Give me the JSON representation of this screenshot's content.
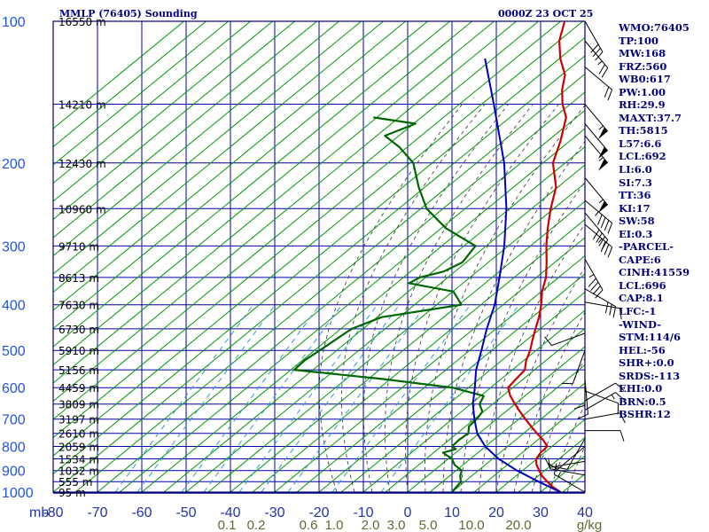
{
  "header": {
    "title": "MMLP (76405) Sounding",
    "datetime": "0000Z 23 OCT 25"
  },
  "indices": [
    "WMO:76405",
    "TP:100",
    "MW:168",
    "FRZ:560",
    "WB0:617",
    "PW:1.00",
    "RH:29.9",
    "MAXT:37.7",
    "TH:5815",
    "L57:6.6",
    "LCL:692",
    "LI:6.0",
    "SI:7.3",
    "TT:36",
    "KI:17",
    "SW:58",
    "EI:0.3",
    "-PARCEL-",
    "CAPE:6",
    "CINH:41559",
    "LCL:696",
    "CAP:8.1",
    "LFC:-1",
    "-WIND-",
    "STM:114/6",
    "HEL:-56",
    "SHR+:0.0",
    "SRDS:-113",
    "EHI:0.0",
    "BRN:0.5",
    "BSHR:12"
  ],
  "colors": {
    "frame": "#00007a",
    "isobar": "#0000aa",
    "isotherm": "#0000aa",
    "dry_adiabat": "#009900",
    "moist_adiabat": "#444444",
    "mixing_ratio": "#3399cc",
    "temperature": "#cc0000",
    "dewpoint": "#006600",
    "parcel": "#0000bb",
    "axis_text_p": "#2255dd",
    "axis_text_t": "#2233aa",
    "mixing_text": "#666633",
    "height_text": "#000000",
    "wind_barb": "#000000"
  },
  "chart_data": {
    "type": "skew-t",
    "xlabel": "",
    "ylabel": "mb",
    "x_ticks": [
      -80,
      -70,
      -60,
      -50,
      -40,
      -30,
      -20,
      -10,
      0,
      10,
      20,
      30,
      40
    ],
    "x_tick_labels": [
      "-80",
      "-70",
      "-60",
      "-50",
      "-40",
      "-30",
      "-20",
      "-10",
      "0",
      "10",
      "20",
      "30",
      "40"
    ],
    "y_ticks": [
      100,
      200,
      300,
      400,
      500,
      600,
      700,
      800,
      900,
      1000
    ],
    "y_tick_labels": [
      "100",
      "200",
      "300",
      "400",
      "500",
      "600",
      "700",
      "800",
      "900",
      "1000"
    ],
    "mixing_ratio_labels": [
      "0.1",
      "0.2",
      "0.6",
      "1.0",
      "2.0",
      "3.0",
      "5.0",
      "10.0",
      "20.0",
      "g/kg"
    ],
    "heights": [
      {
        "p": 100,
        "label": "16550 m"
      },
      {
        "p": 150,
        "label": "14210 m"
      },
      {
        "p": 200,
        "label": "12430 m"
      },
      {
        "p": 250,
        "label": "10960 m"
      },
      {
        "p": 300,
        "label": "9710 m"
      },
      {
        "p": 350,
        "label": "8613 m"
      },
      {
        "p": 400,
        "label": "7630 m"
      },
      {
        "p": 450,
        "label": "6730 m"
      },
      {
        "p": 500,
        "label": "5910 m"
      },
      {
        "p": 550,
        "label": "5156 m"
      },
      {
        "p": 600,
        "label": "4459 m"
      },
      {
        "p": 650,
        "label": "3809 m"
      },
      {
        "p": 700,
        "label": "3197 m"
      },
      {
        "p": 750,
        "label": "2610 m"
      },
      {
        "p": 800,
        "label": "2059 m"
      },
      {
        "p": 850,
        "label": "1534 m"
      },
      {
        "p": 900,
        "label": "1032 m"
      },
      {
        "p": 950,
        "label": "555 m"
      },
      {
        "p": 1000,
        "label": "95 m"
      }
    ],
    "series": [
      {
        "key": "temperature",
        "points": [
          [
            1000,
            34.5
          ],
          [
            975,
            31.5
          ],
          [
            950,
            29
          ],
          [
            925,
            26.5
          ],
          [
            900,
            24.5
          ],
          [
            875,
            22.5
          ],
          [
            850,
            21
          ],
          [
            825,
            20.5
          ],
          [
            800,
            20.5
          ],
          [
            775,
            18
          ],
          [
            750,
            15
          ],
          [
            725,
            12
          ],
          [
            700,
            9
          ],
          [
            675,
            6
          ],
          [
            650,
            3
          ],
          [
            625,
            0
          ],
          [
            600,
            -2.5
          ],
          [
            575,
            -2.8
          ],
          [
            550,
            -3
          ],
          [
            525,
            -5
          ],
          [
            500,
            -6.5
          ],
          [
            475,
            -8.5
          ],
          [
            450,
            -10.5
          ],
          [
            425,
            -12.5
          ],
          [
            400,
            -15
          ],
          [
            375,
            -18
          ],
          [
            350,
            -20.5
          ],
          [
            325,
            -24
          ],
          [
            300,
            -28
          ],
          [
            275,
            -32
          ],
          [
            250,
            -36
          ],
          [
            225,
            -40
          ],
          [
            200,
            -46.5
          ],
          [
            180,
            -50
          ],
          [
            160,
            -54.5
          ],
          [
            150,
            -58.5
          ],
          [
            140,
            -62
          ],
          [
            130,
            -65
          ],
          [
            120,
            -70
          ],
          [
            110,
            -74.5
          ],
          [
            100,
            -78
          ]
        ]
      },
      {
        "key": "dewpoint",
        "points": [
          [
            1000,
            10
          ],
          [
            950,
            9.5
          ],
          [
            925,
            8
          ],
          [
            900,
            7
          ],
          [
            875,
            4
          ],
          [
            850,
            2
          ],
          [
            825,
            -1.5
          ],
          [
            810,
            0.5
          ],
          [
            800,
            -1
          ],
          [
            775,
            -1
          ],
          [
            750,
            -0.5
          ],
          [
            725,
            -2
          ],
          [
            700,
            -2
          ],
          [
            675,
            -2.5
          ],
          [
            650,
            -5
          ],
          [
            625,
            -6
          ],
          [
            600,
            -15
          ],
          [
            575,
            -33
          ],
          [
            550,
            -55
          ],
          [
            525,
            -55
          ],
          [
            500,
            -54
          ],
          [
            475,
            -53
          ],
          [
            450,
            -52
          ],
          [
            425,
            -48
          ],
          [
            400,
            -33
          ],
          [
            375,
            -38
          ],
          [
            360,
            -50
          ],
          [
            350,
            -49
          ],
          [
            340,
            -45
          ],
          [
            325,
            -43
          ],
          [
            300,
            -44
          ],
          [
            275,
            -55
          ],
          [
            250,
            -64
          ],
          [
            225,
            -71
          ],
          [
            200,
            -78
          ],
          [
            185,
            -85
          ],
          [
            175,
            -91
          ],
          [
            165,
            -87
          ],
          [
            160,
            -98
          ]
        ]
      },
      {
        "key": "parcel",
        "points": [
          [
            1000,
            34.5
          ],
          [
            950,
            27
          ],
          [
            900,
            19.5
          ],
          [
            850,
            12.5
          ],
          [
            800,
            6.5
          ],
          [
            750,
            1.5
          ],
          [
            700,
            -2.5
          ],
          [
            650,
            -6.5
          ],
          [
            600,
            -10
          ],
          [
            550,
            -14
          ],
          [
            500,
            -17.5
          ],
          [
            450,
            -21.5
          ],
          [
            400,
            -25.5
          ],
          [
            350,
            -31
          ],
          [
            300,
            -37.5
          ],
          [
            250,
            -46
          ],
          [
            200,
            -57.5
          ],
          [
            150,
            -74
          ],
          [
            120,
            -87
          ]
        ]
      }
    ],
    "winds": [
      {
        "p": 100,
        "dir": 150,
        "spd": 30
      },
      {
        "p": 110,
        "dir": 140,
        "spd": 25
      },
      {
        "p": 125,
        "dir": 130,
        "spd": 20
      },
      {
        "p": 150,
        "dir": 140,
        "spd": 55
      },
      {
        "p": 165,
        "dir": 140,
        "spd": 50
      },
      {
        "p": 175,
        "dir": 140,
        "spd": 55
      },
      {
        "p": 215,
        "dir": 140,
        "spd": 55
      },
      {
        "p": 240,
        "dir": 130,
        "spd": 45
      },
      {
        "p": 255,
        "dir": 140,
        "spd": 40
      },
      {
        "p": 270,
        "dir": 130,
        "spd": 35
      },
      {
        "p": 320,
        "dir": 150,
        "spd": 45
      },
      {
        "p": 370,
        "dir": 120,
        "spd": 30
      },
      {
        "p": 395,
        "dir": 100,
        "spd": 10
      },
      {
        "p": 460,
        "dir": 250,
        "spd": 10
      },
      {
        "p": 500,
        "dir": 200,
        "spd": 10
      },
      {
        "p": 550,
        "dir": 180,
        "spd": 10
      },
      {
        "p": 575,
        "dir": 175,
        "spd": 10
      },
      {
        "p": 610,
        "dir": 110,
        "spd": 10
      },
      {
        "p": 640,
        "dir": 60,
        "spd": 10
      },
      {
        "p": 670,
        "dir": 60,
        "spd": 15
      },
      {
        "p": 700,
        "dir": 80,
        "spd": 10
      },
      {
        "p": 740,
        "dir": 90,
        "spd": 10
      },
      {
        "p": 770,
        "dir": 210,
        "spd": 10
      },
      {
        "p": 800,
        "dir": 230,
        "spd": 10
      },
      {
        "p": 860,
        "dir": 260,
        "spd": 10
      },
      {
        "p": 920,
        "dir": 280,
        "spd": 10
      },
      {
        "p": 1000,
        "dir": 300,
        "spd": 15
      }
    ]
  }
}
